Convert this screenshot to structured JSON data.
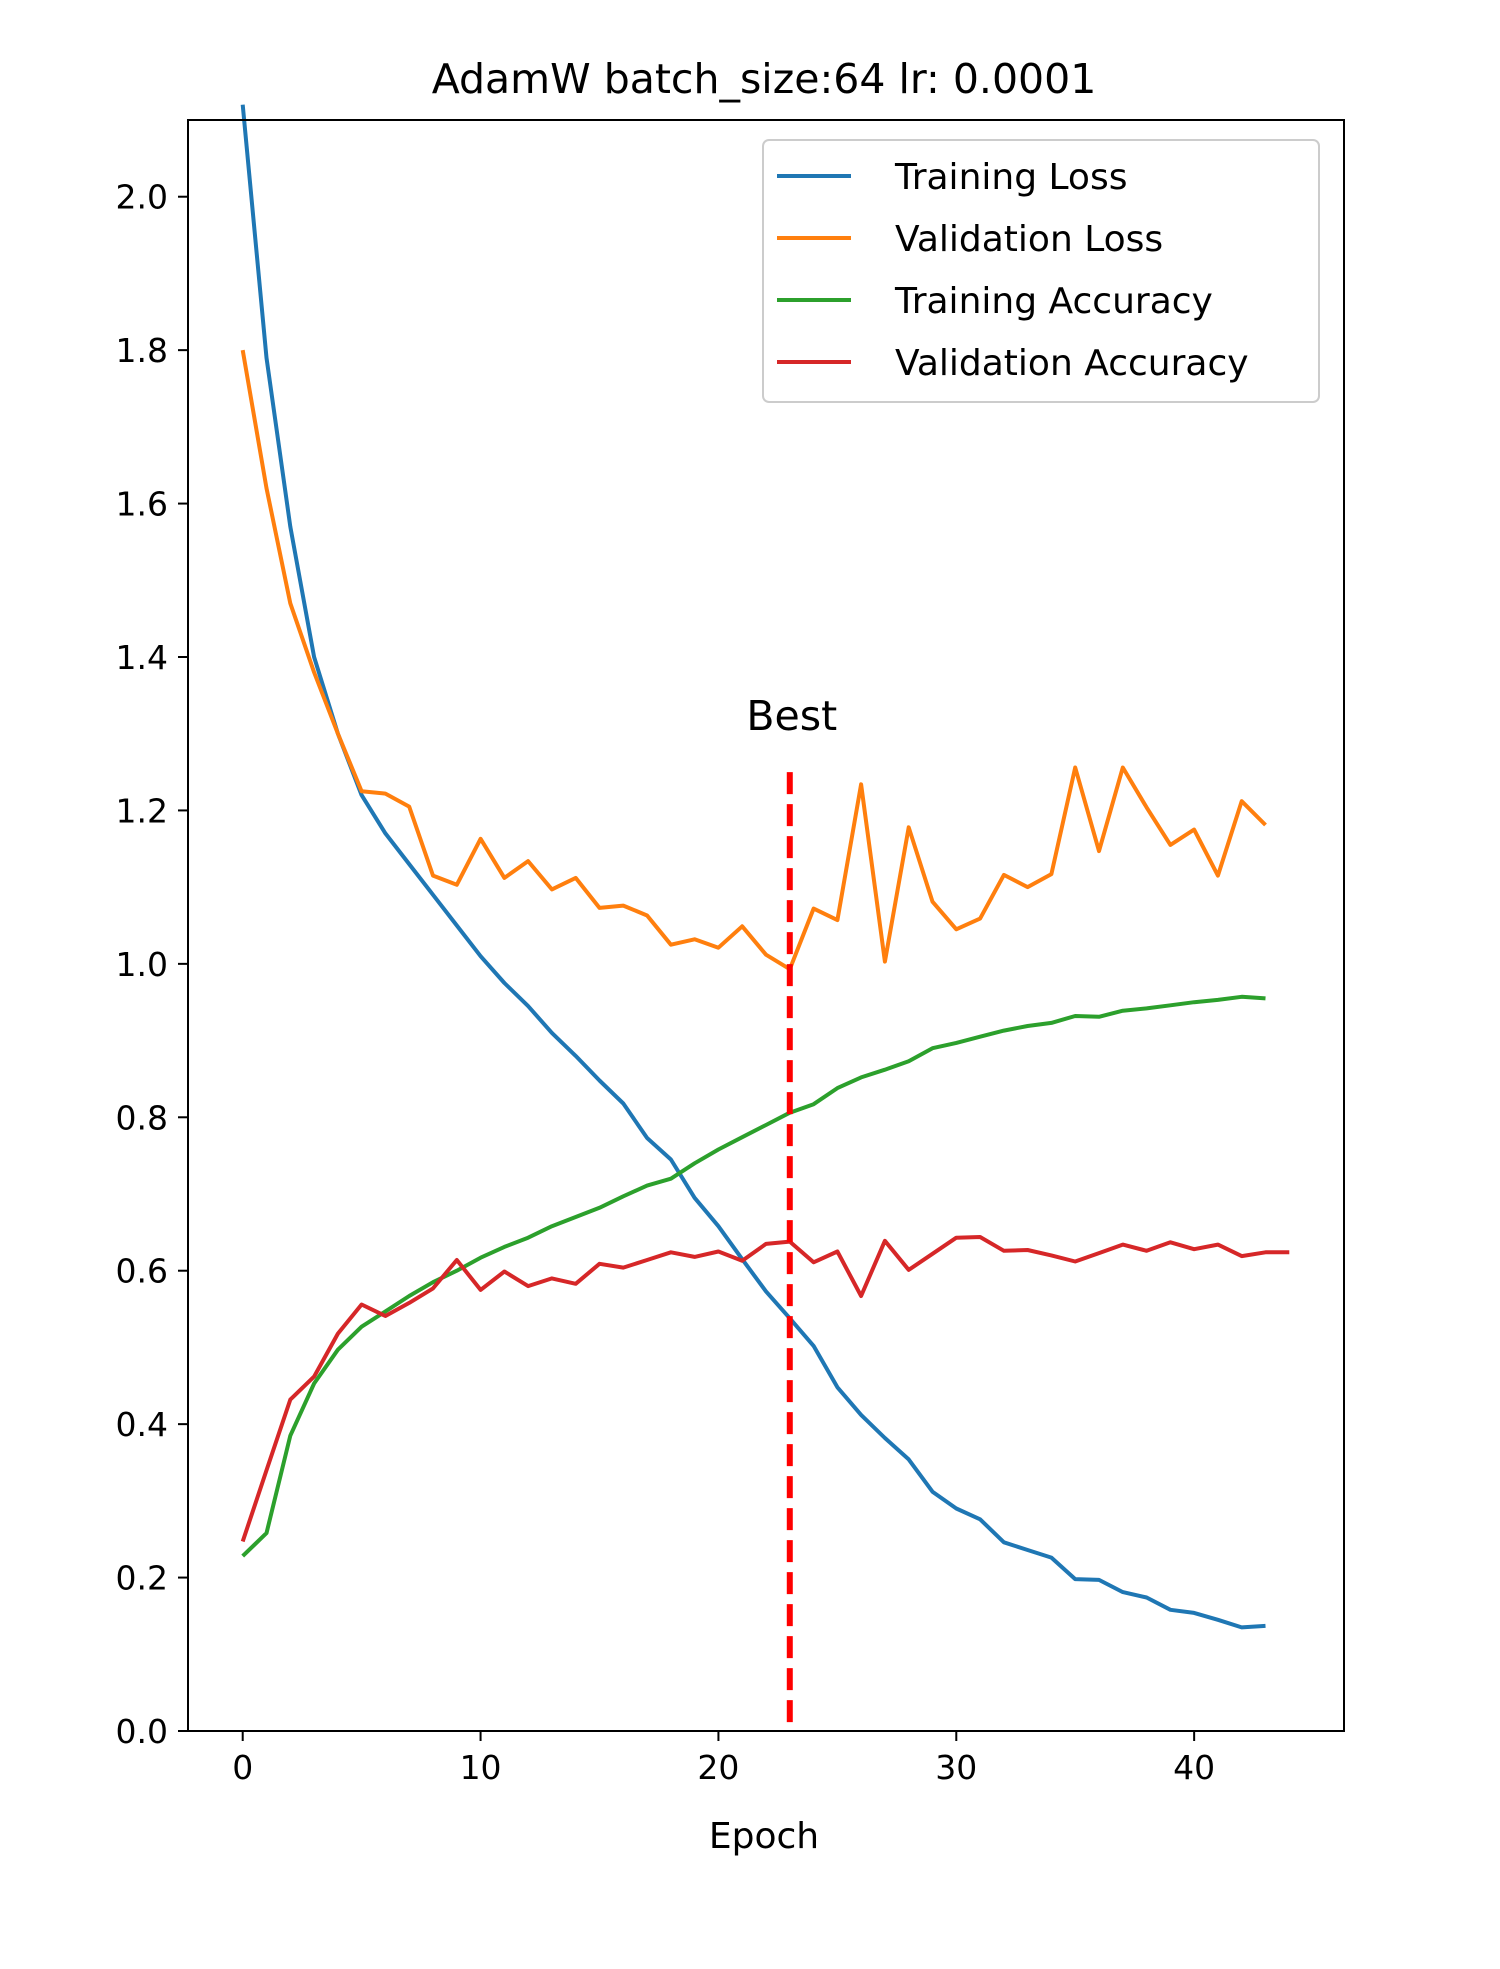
{
  "chart_data": {
    "type": "line",
    "title": "AdamW batch_size:64 lr: 0.0001",
    "xlabel": "Epoch",
    "ylabel": "",
    "xlim": [
      -2.3,
      46.3
    ],
    "ylim": [
      0,
      2.1
    ],
    "xticks": [
      0,
      10,
      20,
      30,
      40
    ],
    "yticks": [
      0.0,
      0.2,
      0.4,
      0.6,
      0.8,
      1.0,
      1.2,
      1.4,
      1.6,
      1.8,
      2.0
    ],
    "grid": false,
    "legend_position": "top-right",
    "annotation": {
      "text": "Best",
      "x": 23,
      "color": "#ff0000",
      "line_style": "dashed",
      "line_top": 1.25
    },
    "series": [
      {
        "name": "Training Loss",
        "color": "#1f77b4",
        "x": [
          0,
          1,
          2,
          3,
          4,
          5,
          6,
          7,
          8,
          9,
          10,
          11,
          12,
          13,
          14,
          15,
          16,
          17,
          18,
          19,
          20,
          21,
          22,
          23,
          24,
          25,
          26,
          27,
          28,
          29,
          30,
          31,
          32,
          33,
          34,
          35,
          36,
          37,
          38,
          39,
          40,
          41,
          42,
          43
        ],
        "values": [
          2.12,
          1.79,
          1.57,
          1.4,
          1.3,
          1.22,
          1.17,
          1.13,
          1.09,
          1.05,
          1.01,
          0.975,
          0.945,
          0.91,
          0.88,
          0.848,
          0.818,
          0.773,
          0.745,
          0.695,
          0.658,
          0.615,
          0.573,
          0.538,
          0.502,
          0.448,
          0.412,
          0.382,
          0.354,
          0.312,
          0.29,
          0.276,
          0.246,
          0.236,
          0.226,
          0.198,
          0.197,
          0.181,
          0.174,
          0.158,
          0.154,
          0.145,
          0.135,
          0.137
        ]
      },
      {
        "name": "Validation Loss",
        "color": "#ff7f0e",
        "x": [
          0,
          1,
          2,
          3,
          4,
          5,
          6,
          7,
          8,
          9,
          10,
          11,
          12,
          13,
          14,
          15,
          16,
          17,
          18,
          19,
          20,
          21,
          22,
          23,
          24,
          25,
          26,
          27,
          28,
          29,
          30,
          31,
          32,
          33,
          34,
          35,
          36,
          37,
          38,
          39,
          40,
          41,
          42,
          43
        ],
        "values": [
          1.8,
          1.62,
          1.47,
          1.38,
          1.3,
          1.225,
          1.222,
          1.205,
          1.115,
          1.103,
          1.163,
          1.112,
          1.134,
          1.097,
          1.112,
          1.073,
          1.076,
          1.063,
          1.025,
          1.032,
          1.021,
          1.049,
          1.012,
          0.993,
          1.072,
          1.057,
          1.234,
          1.003,
          1.178,
          1.081,
          1.045,
          1.059,
          1.116,
          1.1,
          1.117,
          1.256,
          1.147,
          1.256,
          1.204,
          1.155,
          1.175,
          1.115,
          1.212,
          1.181
        ]
      },
      {
        "name": "Training Accuracy",
        "color": "#2ca02c",
        "x": [
          0,
          1,
          2,
          3,
          4,
          5,
          6,
          7,
          8,
          9,
          10,
          11,
          12,
          13,
          14,
          15,
          16,
          17,
          18,
          19,
          20,
          21,
          22,
          23,
          24,
          25,
          26,
          27,
          28,
          29,
          30,
          31,
          32,
          33,
          34,
          35,
          36,
          37,
          38,
          39,
          40,
          41,
          42,
          43
        ],
        "values": [
          0.228,
          0.258,
          0.385,
          0.453,
          0.497,
          0.527,
          0.547,
          0.567,
          0.585,
          0.6,
          0.617,
          0.631,
          0.643,
          0.658,
          0.67,
          0.682,
          0.697,
          0.711,
          0.72,
          0.74,
          0.758,
          0.774,
          0.79,
          0.806,
          0.817,
          0.838,
          0.852,
          0.862,
          0.873,
          0.89,
          0.897,
          0.905,
          0.913,
          0.919,
          0.923,
          0.932,
          0.931,
          0.939,
          0.942,
          0.946,
          0.95,
          0.953,
          0.957,
          0.955
        ]
      },
      {
        "name": "Validation Accuracy",
        "color": "#d62728",
        "x": [
          0,
          1,
          2,
          3,
          4,
          5,
          6,
          7,
          8,
          9,
          10,
          11,
          12,
          13,
          14,
          15,
          16,
          17,
          18,
          19,
          20,
          21,
          22,
          23,
          24,
          25,
          26,
          27,
          28,
          29,
          30,
          31,
          32,
          33,
          34,
          35,
          36,
          37,
          38,
          39,
          40,
          41,
          42,
          43,
          44
        ],
        "values": [
          0.247,
          0.34,
          0.432,
          0.462,
          0.518,
          0.556,
          0.541,
          0.558,
          0.577,
          0.614,
          0.575,
          0.599,
          0.58,
          0.59,
          0.583,
          0.609,
          0.604,
          0.614,
          0.624,
          0.618,
          0.625,
          0.613,
          0.635,
          0.638,
          0.611,
          0.625,
          0.567,
          0.639,
          0.601,
          0.622,
          0.643,
          0.644,
          0.626,
          0.627,
          0.62,
          0.612,
          0.623,
          0.634,
          0.626,
          0.637,
          0.628,
          0.634,
          0.619,
          0.624,
          0.624
        ]
      }
    ]
  }
}
